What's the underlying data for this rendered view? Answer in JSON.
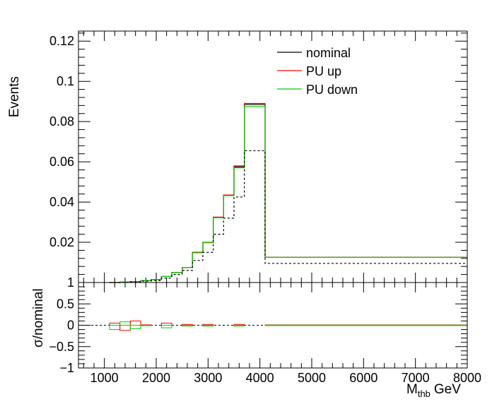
{
  "colors": {
    "nominal": "#000000",
    "pu_up": "#ff0000",
    "pu_down": "#00cc00",
    "frame": "#000000"
  },
  "chart_data": [
    {
      "type": "line",
      "panel": "main",
      "ylabel": "Events",
      "xlim": [
        500,
        8000
      ],
      "ylim": [
        0,
        0.125
      ],
      "y_ticks": [
        "0.02",
        "0.04",
        "0.06",
        "0.08",
        "0.1",
        "0.12"
      ],
      "y_tick_values": [
        0.02,
        0.04,
        0.06,
        0.08,
        0.1,
        0.12
      ],
      "bin_edges": [
        1100,
        1300,
        1500,
        1700,
        1900,
        2100,
        2300,
        2500,
        2700,
        2900,
        3100,
        3300,
        3500,
        3700,
        4100,
        8000
      ],
      "legend": [
        "nominal",
        "PU up",
        "PU down"
      ],
      "series": [
        {
          "name": "nominal",
          "color": "#000000",
          "style": "solid",
          "values": [
            0,
            0.0002,
            0.0005,
            0.001,
            0.0015,
            0.003,
            0.005,
            0.0075,
            0.015,
            0.02,
            0.0325,
            0.0435,
            0.0575,
            0.0885,
            0.0125
          ]
        },
        {
          "name": "PU up",
          "color": "#ff0000",
          "style": "solid",
          "values": [
            0,
            0.0002,
            0.0005,
            0.001,
            0.0015,
            0.003,
            0.005,
            0.0075,
            0.015,
            0.02,
            0.0325,
            0.0435,
            0.058,
            0.089,
            0.0125
          ]
        },
        {
          "name": "PU down",
          "color": "#00cc00",
          "style": "solid",
          "values": [
            0,
            0.0002,
            0.0005,
            0.001,
            0.0015,
            0.003,
            0.005,
            0.0075,
            0.0148,
            0.0198,
            0.0322,
            0.0432,
            0.057,
            0.0875,
            0.0125
          ]
        },
        {
          "color": "#000000",
          "style": "dashed",
          "values": [
            0,
            0.0001,
            0.0003,
            0.0007,
            0.001,
            0.0022,
            0.004,
            0.006,
            0.011,
            0.015,
            0.024,
            0.032,
            0.0425,
            0.0655,
            0.0095
          ]
        }
      ]
    },
    {
      "type": "line",
      "panel": "ratio",
      "ylabel": "σ/nominal",
      "xlabel_main": "M",
      "xlabel_sub": "thb",
      "xlabel_unit": "GeV",
      "xlim": [
        500,
        8000
      ],
      "ylim": [
        -1,
        1
      ],
      "x_ticks": [
        "1000",
        "2000",
        "3000",
        "4000",
        "5000",
        "6000",
        "7000",
        "8000"
      ],
      "x_tick_values": [
        1000,
        2000,
        3000,
        4000,
        5000,
        6000,
        7000,
        8000
      ],
      "y_ticks": [
        "−1",
        "−0.5",
        "0",
        "0.5",
        "1"
      ],
      "y_tick_values": [
        -1,
        -0.5,
        0,
        0.5,
        1
      ],
      "boxes": [
        {
          "x0": 1100,
          "x1": 1300,
          "up": 0.05,
          "down": -0.1
        },
        {
          "x0": 1300,
          "x1": 1500,
          "up": -0.12,
          "down": 0.08
        },
        {
          "x0": 1500,
          "x1": 1700,
          "up": 0.1,
          "down": -0.08
        },
        {
          "x0": 1700,
          "x1": 1900,
          "up": 0.01,
          "down": -0.01
        },
        {
          "x0": 2100,
          "x1": 2300,
          "up": 0.05,
          "down": -0.06
        },
        {
          "x0": 2500,
          "x1": 2700,
          "up": 0.02,
          "down": -0.02
        },
        {
          "x0": 2900,
          "x1": 3100,
          "up": 0.02,
          "down": -0.02
        },
        {
          "x0": 3500,
          "x1": 3700,
          "up": 0.02,
          "down": -0.02
        },
        {
          "x0": 4100,
          "x1": 8000,
          "up": 0.008,
          "down": 0.002
        }
      ]
    }
  ]
}
